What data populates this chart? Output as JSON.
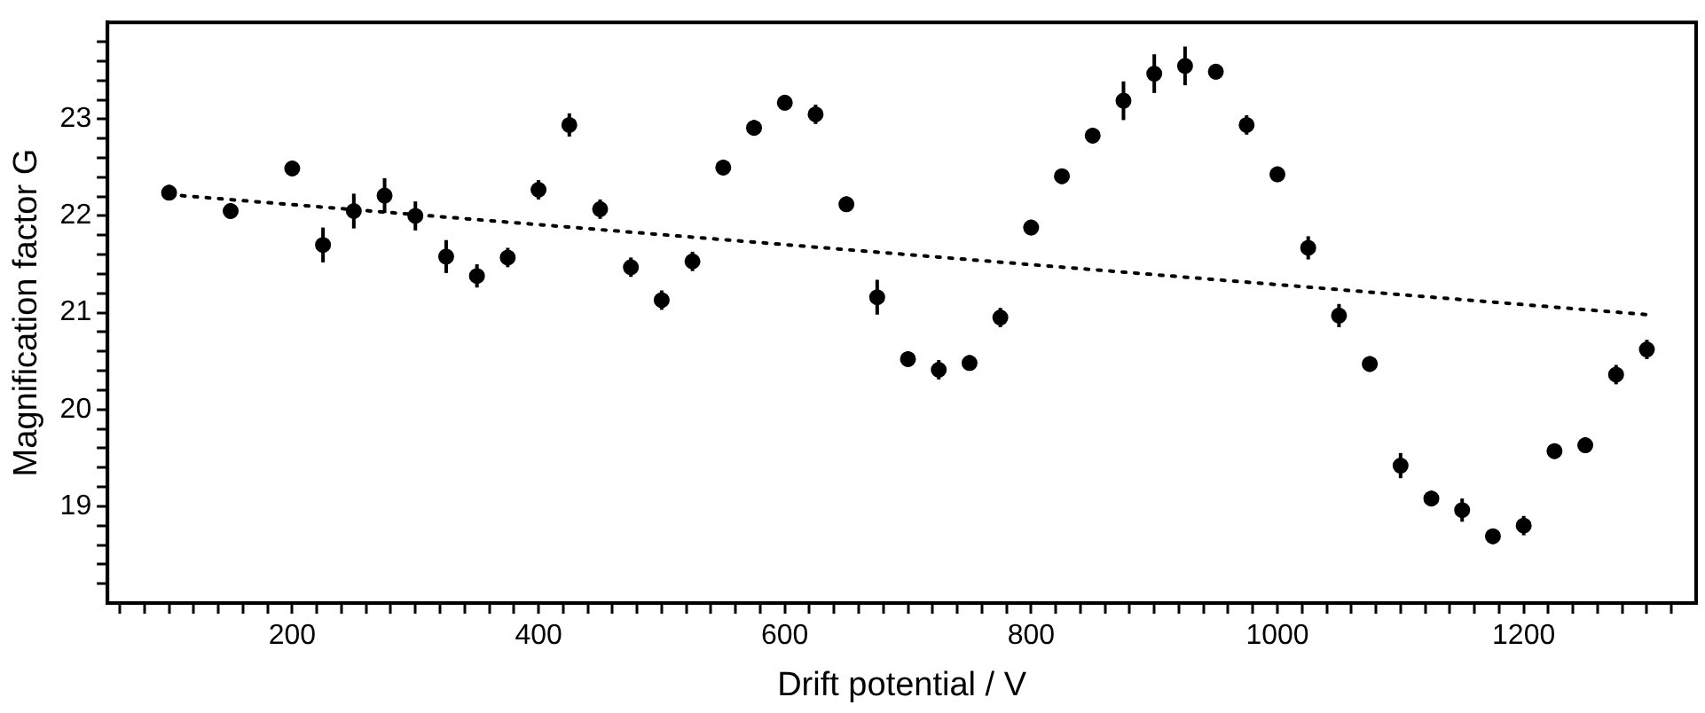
{
  "chart_data": {
    "type": "scatter",
    "xlabel": "Drift potential / V",
    "ylabel": "Magnification factor G",
    "xlim": [
      50,
      1340
    ],
    "ylim": [
      18,
      24
    ],
    "xticks": [
      {
        "value": 60,
        "label": null
      },
      {
        "value": 80,
        "label": null
      },
      {
        "value": 100,
        "label": null
      },
      {
        "value": 120,
        "label": null
      },
      {
        "value": 140,
        "label": null
      },
      {
        "value": 160,
        "label": null
      },
      {
        "value": 180,
        "label": null
      },
      200,
      {
        "value": 220,
        "label": null
      },
      {
        "value": 240,
        "label": null
      },
      {
        "value": 260,
        "label": null
      },
      {
        "value": 280,
        "label": null
      },
      {
        "value": 300,
        "label": null
      },
      {
        "value": 320,
        "label": null
      },
      {
        "value": 340,
        "label": null
      },
      {
        "value": 360,
        "label": null
      },
      {
        "value": 380,
        "label": null
      },
      400,
      {
        "value": 420,
        "label": null
      },
      {
        "value": 440,
        "label": null
      },
      {
        "value": 460,
        "label": null
      },
      {
        "value": 480,
        "label": null
      },
      {
        "value": 500,
        "label": null
      },
      {
        "value": 520,
        "label": null
      },
      {
        "value": 540,
        "label": null
      },
      {
        "value": 560,
        "label": null
      },
      {
        "value": 580,
        "label": null
      },
      600,
      {
        "value": 620,
        "label": null
      },
      {
        "value": 640,
        "label": null
      },
      {
        "value": 660,
        "label": null
      },
      {
        "value": 680,
        "label": null
      },
      {
        "value": 700,
        "label": null
      },
      {
        "value": 720,
        "label": null
      },
      {
        "value": 740,
        "label": null
      },
      {
        "value": 760,
        "label": null
      },
      {
        "value": 780,
        "label": null
      },
      800,
      {
        "value": 820,
        "label": null
      },
      {
        "value": 840,
        "label": null
      },
      {
        "value": 860,
        "label": null
      },
      {
        "value": 880,
        "label": null
      },
      {
        "value": 900,
        "label": null
      },
      {
        "value": 920,
        "label": null
      },
      {
        "value": 940,
        "label": null
      },
      {
        "value": 960,
        "label": null
      },
      {
        "value": 980,
        "label": null
      },
      1000,
      {
        "value": 1020,
        "label": null
      },
      {
        "value": 1040,
        "label": null
      },
      {
        "value": 1060,
        "label": null
      },
      {
        "value": 1080,
        "label": null
      },
      {
        "value": 1100,
        "label": null
      },
      {
        "value": 1120,
        "label": null
      },
      {
        "value": 1140,
        "label": null
      },
      {
        "value": 1160,
        "label": null
      },
      {
        "value": 1180,
        "label": null
      },
      1200,
      {
        "value": 1220,
        "label": null
      },
      {
        "value": 1240,
        "label": null
      },
      {
        "value": 1260,
        "label": null
      },
      {
        "value": 1280,
        "label": null
      },
      {
        "value": 1300,
        "label": null
      },
      {
        "value": 1320,
        "label": null
      }
    ],
    "yticks": [
      {
        "value": 18.2,
        "label": null
      },
      {
        "value": 18.4,
        "label": null
      },
      {
        "value": 18.6,
        "label": null
      },
      {
        "value": 18.8,
        "label": null
      },
      19,
      {
        "value": 19.2,
        "label": null
      },
      {
        "value": 19.4,
        "label": null
      },
      {
        "value": 19.6,
        "label": null
      },
      {
        "value": 19.8,
        "label": null
      },
      20,
      {
        "value": 20.2,
        "label": null
      },
      {
        "value": 20.4,
        "label": null
      },
      {
        "value": 20.6,
        "label": null
      },
      {
        "value": 20.8,
        "label": null
      },
      21,
      {
        "value": 21.2,
        "label": null
      },
      {
        "value": 21.4,
        "label": null
      },
      {
        "value": 21.6,
        "label": null
      },
      {
        "value": 21.8,
        "label": null
      },
      22,
      {
        "value": 22.2,
        "label": null
      },
      {
        "value": 22.4,
        "label": null
      },
      {
        "value": 22.6,
        "label": null
      },
      {
        "value": 22.8,
        "label": null
      },
      23,
      {
        "value": 23.2,
        "label": null
      },
      {
        "value": 23.4,
        "label": null
      },
      {
        "value": 23.6,
        "label": null
      },
      {
        "value": 23.8,
        "label": null
      }
    ],
    "series": [
      {
        "type": "scatter",
        "color": "#000000",
        "marker": "circle",
        "x": [
          100,
          150,
          200,
          225,
          250,
          275,
          300,
          325,
          350,
          375,
          400,
          425,
          450,
          475,
          500,
          525,
          550,
          575,
          600,
          625,
          650,
          675,
          700,
          725,
          750,
          775,
          800,
          825,
          850,
          875,
          900,
          925,
          950,
          975,
          1000,
          1025,
          1050,
          1075,
          1100,
          1125,
          1150,
          1175,
          1200,
          1225,
          1250,
          1275,
          1300
        ],
        "values": [
          22.24,
          22.05,
          22.49,
          21.7,
          22.05,
          22.21,
          22.0,
          21.58,
          21.38,
          21.57,
          22.27,
          22.94,
          22.07,
          21.47,
          21.13,
          21.53,
          22.5,
          22.91,
          23.17,
          23.05,
          22.12,
          21.16,
          20.52,
          20.41,
          20.48,
          20.95,
          21.88,
          22.41,
          22.83,
          23.19,
          23.47,
          23.55,
          23.49,
          22.94,
          22.43,
          21.67,
          20.97,
          20.47,
          19.42,
          19.08,
          18.96,
          18.69,
          18.8,
          19.57,
          19.63,
          20.36,
          20.62
        ],
        "errors": [
          0.08,
          0.08,
          0.08,
          0.18,
          0.18,
          0.18,
          0.15,
          0.17,
          0.12,
          0.1,
          0.1,
          0.12,
          0.1,
          0.1,
          0.1,
          0.1,
          0.08,
          0.08,
          0.08,
          0.1,
          0.08,
          0.18,
          0.08,
          0.1,
          0.08,
          0.1,
          0.08,
          0.08,
          0.08,
          0.2,
          0.2,
          0.2,
          0.08,
          0.1,
          0.08,
          0.12,
          0.12,
          0.08,
          0.13,
          0.08,
          0.12,
          0.08,
          0.1,
          0.08,
          0.08,
          0.1,
          0.1
        ]
      },
      {
        "type": "line",
        "color": "#000000",
        "marker": "none",
        "line_style": "dotted",
        "x": [
          100,
          1300
        ],
        "values": [
          22.22,
          20.98
        ]
      }
    ]
  }
}
